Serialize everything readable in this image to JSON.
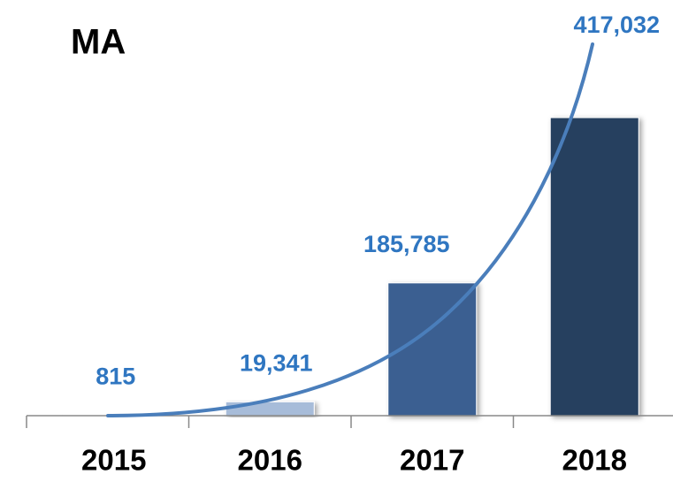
{
  "chart_data": {
    "type": "bar",
    "title": "MA",
    "categories": [
      "2015",
      "2016",
      "2017",
      "2018"
    ],
    "values": [
      815,
      19341,
      185785,
      417032
    ],
    "value_labels": [
      "815",
      "19,341",
      "185,785",
      "417,032"
    ],
    "colors": [
      "#b9c9df",
      "#a7bcd9",
      "#3a5f91",
      "#283f5f"
    ],
    "label_color": "#2f76c1"
  }
}
